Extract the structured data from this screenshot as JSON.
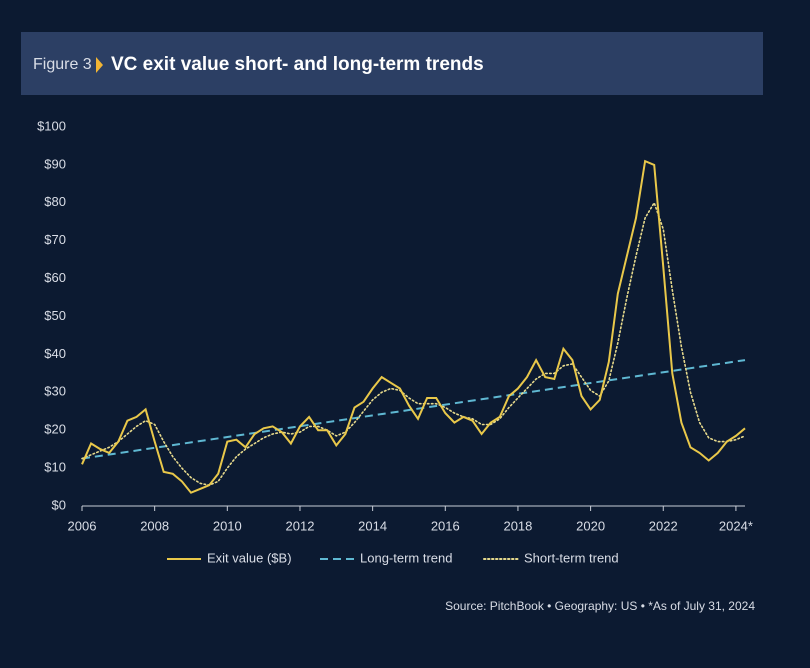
{
  "chart_data": {
    "type": "line",
    "figure_label": "Figure 3",
    "title": "VC exit value short- and long-term trends",
    "source": "Source: PitchBook • Geography: US • *As of July 31, 2024",
    "x": [
      2006,
      2006.25,
      2006.5,
      2006.75,
      2007,
      2007.25,
      2007.5,
      2007.75,
      2008,
      2008.25,
      2008.5,
      2008.75,
      2009,
      2009.25,
      2009.5,
      2009.75,
      2010,
      2010.25,
      2010.5,
      2010.75,
      2011,
      2011.25,
      2011.5,
      2011.75,
      2012,
      2012.25,
      2012.5,
      2012.75,
      2013,
      2013.25,
      2013.5,
      2013.75,
      2014,
      2014.25,
      2014.5,
      2014.75,
      2015,
      2015.25,
      2015.5,
      2015.75,
      2016,
      2016.25,
      2016.5,
      2016.75,
      2017,
      2017.25,
      2017.5,
      2017.75,
      2018,
      2018.25,
      2018.5,
      2018.75,
      2019,
      2019.25,
      2019.5,
      2019.75,
      2020,
      2020.25,
      2020.5,
      2020.75,
      2021,
      2021.25,
      2021.5,
      2021.75,
      2022,
      2022.25,
      2022.5,
      2022.75,
      2023,
      2023.25,
      2023.5,
      2023.75,
      2024,
      2024.25
    ],
    "series": [
      {
        "name": "Exit value ($B)",
        "color": "#e9c84a",
        "style": "solid",
        "values": [
          11,
          16.5,
          15,
          14,
          17,
          22.5,
          23.5,
          25.5,
          17,
          9,
          8.5,
          6.5,
          3.5,
          4.5,
          5.5,
          8.5,
          17,
          17.5,
          15.5,
          19,
          20.5,
          21,
          19.5,
          16.5,
          21,
          23.5,
          20,
          20,
          16,
          19,
          26,
          27.5,
          31,
          34,
          32.5,
          31,
          26.5,
          23,
          28.5,
          28.5,
          24.5,
          22,
          23.5,
          22.5,
          19,
          22,
          23.5,
          29,
          31,
          34,
          38.5,
          34,
          33.5,
          41.5,
          38.5,
          29,
          25.5,
          28,
          38,
          56,
          66,
          76,
          91,
          90,
          63,
          35,
          22,
          15.5,
          14,
          12,
          14,
          17,
          18.5,
          20.5
        ]
      },
      {
        "name": "Long-term trend",
        "color": "#5fb8d2",
        "style": "dashed",
        "x": [
          2006,
          2024.25
        ],
        "values": [
          12.5,
          38.5
        ]
      },
      {
        "name": "Short-term trend",
        "color": "#e6d98c",
        "style": "dotted",
        "values": [
          12.5,
          13.5,
          14.5,
          15.5,
          17,
          19,
          21,
          22.5,
          21.5,
          17,
          13,
          10,
          7.5,
          6,
          5.5,
          6.5,
          10,
          13,
          15,
          16.5,
          18,
          19,
          19.5,
          19,
          19.5,
          21,
          21,
          20,
          18.5,
          19.5,
          22,
          25,
          28,
          30,
          31,
          30.5,
          28.5,
          27,
          27,
          27,
          26,
          24.5,
          23.5,
          23,
          21.5,
          21.5,
          23,
          26,
          28.5,
          31,
          33.5,
          35,
          35,
          37,
          37.5,
          34,
          30.5,
          29,
          33,
          43,
          55,
          66,
          76,
          80,
          73,
          57,
          42,
          30,
          22,
          18,
          17,
          17,
          17.5,
          18.5
        ]
      }
    ],
    "xlim": [
      2006,
      2024.25
    ],
    "xticks": [
      2006,
      2008,
      2010,
      2012,
      2014,
      2016,
      2018,
      2020,
      2022,
      {
        "value": 2024,
        "label": "2024*"
      }
    ],
    "ylim": [
      0,
      100
    ],
    "yticks": [
      {
        "value": 0,
        "label": "$0"
      },
      {
        "value": 10,
        "label": "$10"
      },
      {
        "value": 20,
        "label": "$20"
      },
      {
        "value": 30,
        "label": "$30"
      },
      {
        "value": 40,
        "label": "$40"
      },
      {
        "value": 50,
        "label": "$50"
      },
      {
        "value": 60,
        "label": "$60"
      },
      {
        "value": 70,
        "label": "$70"
      },
      {
        "value": 80,
        "label": "$80"
      },
      {
        "value": 90,
        "label": "$90"
      },
      {
        "value": 100,
        "label": "$100"
      }
    ],
    "grid": false
  }
}
